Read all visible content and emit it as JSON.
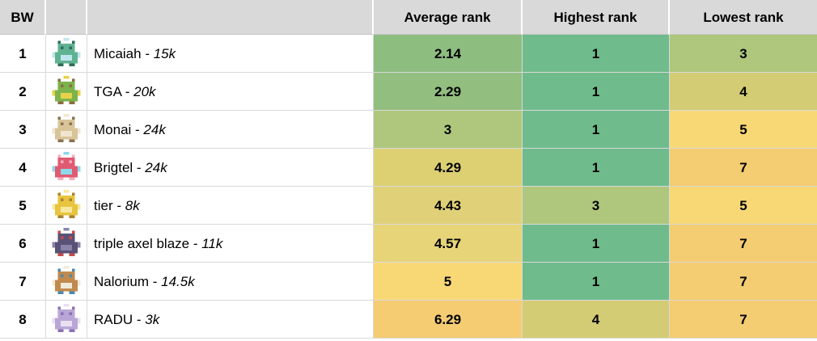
{
  "sheet": {
    "separator": " - ",
    "headers": {
      "rank": "BW",
      "icon": "",
      "name": "",
      "average": "Average rank",
      "highest": "Highest rank",
      "lowest": "Lowest rank"
    },
    "style": {
      "header_bg": "#d9d9d9",
      "grid_color": "#d9d9d9",
      "text_color": "#000000",
      "scale_min_color": "#6fbb8c",
      "scale_mid_color": "#f8d875",
      "scale_max_color": "#f4cc71"
    },
    "rows": [
      {
        "rank": "1",
        "name": "Micaiah",
        "points": "15k",
        "average": "2.14",
        "average_color": "#8ebd80",
        "highest": "1",
        "highest_color": "#6fbb8c",
        "lowest": "3",
        "lowest_color": "#aec77c",
        "sprite": {
          "body": "#5fb392",
          "accent": "#bfe6ee",
          "dark": "#2e6b5a"
        }
      },
      {
        "rank": "2",
        "name": "TGA",
        "points": "20k",
        "average": "2.29",
        "average_color": "#92be80",
        "highest": "1",
        "highest_color": "#6fbb8c",
        "lowest": "4",
        "lowest_color": "#d3cc74",
        "sprite": {
          "body": "#7db34c",
          "accent": "#e8d24a",
          "dark": "#8a6d3b"
        }
      },
      {
        "rank": "3",
        "name": "Monai",
        "points": "24k",
        "average": "3",
        "average_color": "#aec77c",
        "highest": "1",
        "highest_color": "#6fbb8c",
        "lowest": "5",
        "lowest_color": "#f8d875",
        "sprite": {
          "body": "#d9c49a",
          "accent": "#f0e6cf",
          "dark": "#8a7352"
        }
      },
      {
        "rank": "4",
        "name": "Brigtel",
        "points": "24k",
        "average": "4.29",
        "average_color": "#ddd073",
        "highest": "1",
        "highest_color": "#6fbb8c",
        "lowest": "7",
        "lowest_color": "#f4cc71",
        "sprite": {
          "body": "#e05a71",
          "accent": "#8fd8e8",
          "dark": "#f5aebc"
        }
      },
      {
        "rank": "5",
        "name": "tier",
        "points": "8k",
        "average": "4.43",
        "average_color": "#e0d178",
        "highest": "3",
        "highest_color": "#aec77c",
        "lowest": "5",
        "lowest_color": "#f8d875",
        "sprite": {
          "body": "#e8c43f",
          "accent": "#f7e8a0",
          "dark": "#a8832c"
        }
      },
      {
        "rank": "6",
        "name": "triple axel blaze",
        "points": "11k",
        "average": "4.57",
        "average_color": "#e8d478",
        "highest": "1",
        "highest_color": "#6fbb8c",
        "lowest": "7",
        "lowest_color": "#f4cc71",
        "sprite": {
          "body": "#5a5276",
          "accent": "#8a84a8",
          "dark": "#c44a4a"
        }
      },
      {
        "rank": "7",
        "name": "Nalorium",
        "points": "14.5k",
        "average": "5",
        "average_color": "#f8d875",
        "highest": "1",
        "highest_color": "#6fbb8c",
        "lowest": "7",
        "lowest_color": "#f4cc71",
        "sprite": {
          "body": "#c08a4e",
          "accent": "#f0ead8",
          "dark": "#4a8ab0"
        }
      },
      {
        "rank": "8",
        "name": "RADU",
        "points": "3k",
        "average": "6.29",
        "average_color": "#f5cc72",
        "highest": "4",
        "highest_color": "#d3cc74",
        "lowest": "7",
        "lowest_color": "#f4cc71",
        "sprite": {
          "body": "#b9a6d6",
          "accent": "#e8e0f0",
          "dark": "#8a72b0"
        }
      }
    ]
  }
}
